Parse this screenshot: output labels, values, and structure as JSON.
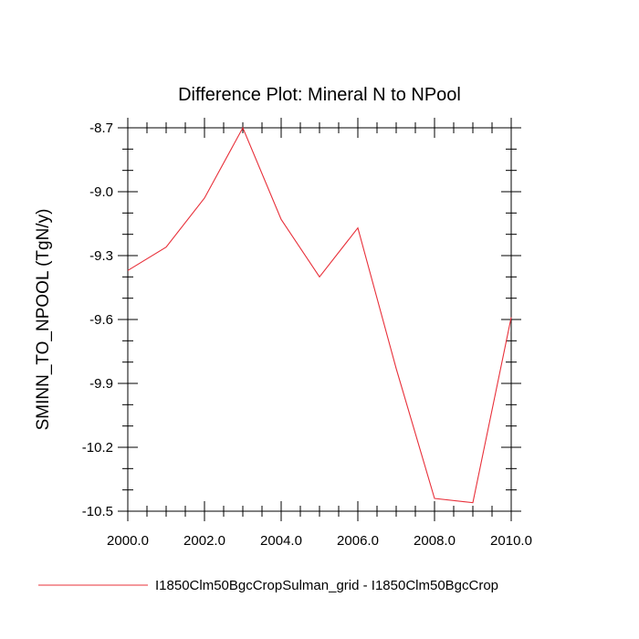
{
  "chart_data": {
    "type": "line",
    "title": "Difference Plot: Mineral N to NPool",
    "xlabel": "",
    "ylabel": "SMINN_TO_NPOOL  (TgN/y)",
    "xlim": [
      2000,
      2010
    ],
    "ylim": [
      -10.5,
      -8.7
    ],
    "x_ticks": [
      2000,
      2002,
      2004,
      2006,
      2008,
      2010
    ],
    "x_tick_labels": [
      "2000.0",
      "2002.0",
      "2004.0",
      "2006.0",
      "2008.0",
      "2010.0"
    ],
    "y_ticks": [
      -8.7,
      -9.0,
      -9.3,
      -9.6,
      -9.9,
      -10.2,
      -10.5
    ],
    "y_tick_labels": [
      "-8.7",
      "-9.0",
      "-9.3",
      "-9.6",
      "-9.9",
      "-10.2",
      "-10.5"
    ],
    "grid": false,
    "legend_position": "bottom",
    "series": [
      {
        "name": "I1850Clm50BgcCropSulman_grid - I1850Clm50BgcCrop",
        "color": "#e8303a",
        "x": [
          2000,
          2001,
          2002,
          2003,
          2004,
          2005,
          2006,
          2007,
          2008,
          2009,
          2010
        ],
        "y": [
          -9.37,
          -9.26,
          -9.03,
          -8.7,
          -9.13,
          -9.4,
          -9.17,
          -9.83,
          -10.44,
          -10.46,
          -9.59
        ]
      }
    ]
  }
}
